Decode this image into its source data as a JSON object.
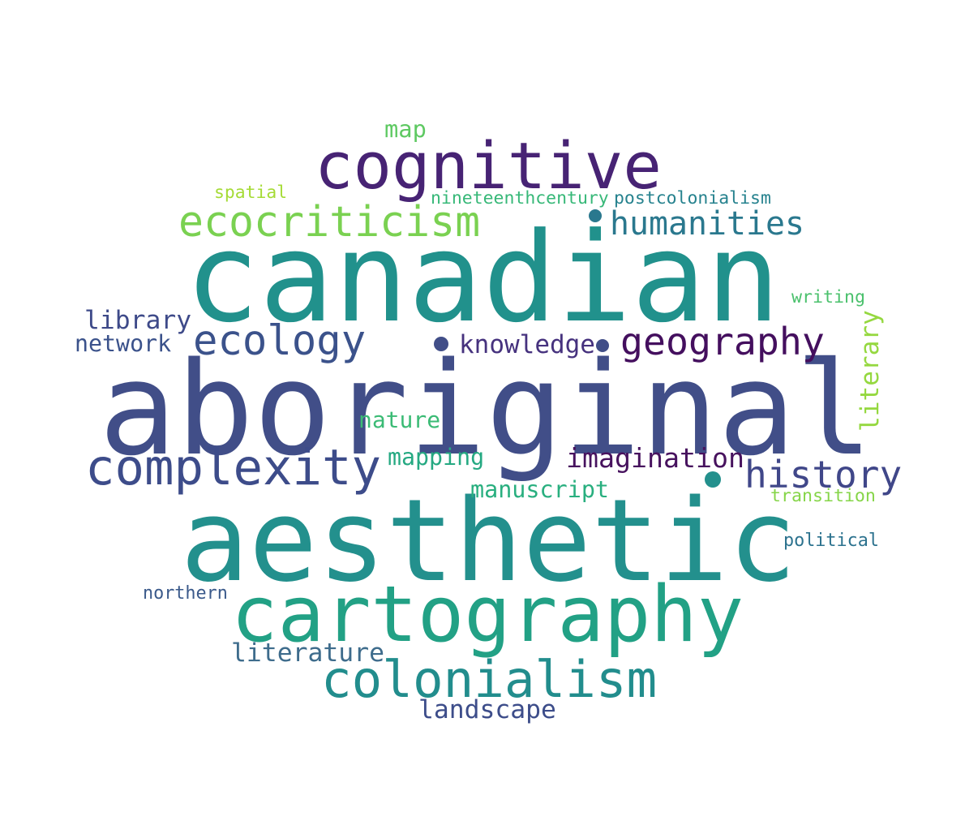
{
  "words": [
    {
      "id": "aboriginal",
      "text": "aboriginal",
      "color": "#414e88"
    },
    {
      "id": "canadian",
      "text": "canadian",
      "color": "#21918c"
    },
    {
      "id": "aesthetic",
      "text": "aesthetic",
      "color": "#23908d"
    },
    {
      "id": "cognitive",
      "text": "cognitive",
      "color": "#472374"
    },
    {
      "id": "cartography",
      "text": "cartography",
      "color": "#22a185"
    },
    {
      "id": "colonialism",
      "text": "colonialism",
      "color": "#228d8d"
    },
    {
      "id": "ecocriticism",
      "text": "ecocriticism",
      "color": "#7ad151"
    },
    {
      "id": "complexity",
      "text": "complexity",
      "color": "#3d4c8a"
    },
    {
      "id": "ecology",
      "text": "ecology",
      "color": "#3b528b"
    },
    {
      "id": "geography",
      "text": "geography",
      "color": "#440f5e"
    },
    {
      "id": "history",
      "text": "history",
      "color": "#404789"
    },
    {
      "id": "humanities",
      "text": "humanities",
      "color": "#2a788e"
    },
    {
      "id": "imagination",
      "text": "imagination",
      "color": "#47125e"
    },
    {
      "id": "knowledge",
      "text": "knowledge",
      "color": "#46327e"
    },
    {
      "id": "library",
      "text": "library",
      "color": "#3e4a89"
    },
    {
      "id": "network",
      "text": "network",
      "color": "#3b528b"
    },
    {
      "id": "nature",
      "text": "nature",
      "color": "#3bbb75"
    },
    {
      "id": "mapping",
      "text": "mapping",
      "color": "#25a982"
    },
    {
      "id": "manuscript",
      "text": "manuscript",
      "color": "#29af7f"
    },
    {
      "id": "literature",
      "text": "literature",
      "color": "#3e6c8c"
    },
    {
      "id": "landscape",
      "text": "landscape",
      "color": "#3d4d8a"
    },
    {
      "id": "literary",
      "text": "literary",
      "color": "#95d840"
    },
    {
      "id": "writing",
      "text": "writing",
      "color": "#4bc16d"
    },
    {
      "id": "transition",
      "text": "transition",
      "color": "#86d549"
    },
    {
      "id": "political",
      "text": "political",
      "color": "#2c728e"
    },
    {
      "id": "northern",
      "text": "northern",
      "color": "#3b5a8b"
    },
    {
      "id": "map",
      "text": "map",
      "color": "#5ec962"
    },
    {
      "id": "spatial",
      "text": "spatial",
      "color": "#a5db36"
    },
    {
      "id": "nineteenthcentury",
      "text": "nineteenthcentury",
      "color": "#37b878"
    },
    {
      "id": "postcolonialism",
      "text": "postcolonialism",
      "color": "#26828e"
    }
  ]
}
